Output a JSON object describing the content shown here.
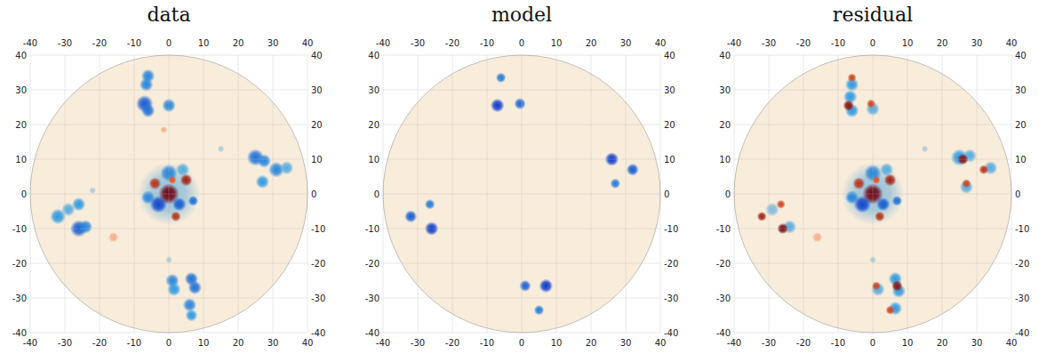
{
  "chart_data": [
    {
      "type": "image",
      "title": "data",
      "xlim": [
        -40,
        40
      ],
      "ylim": [
        -40,
        40
      ],
      "xticks": [
        -40,
        -30,
        -20,
        -10,
        0,
        10,
        20,
        30,
        40
      ],
      "yticks": [
        -40,
        -30,
        -20,
        -10,
        0,
        10,
        20,
        30,
        40
      ],
      "grid": true,
      "points": {
        "x": [
          0,
          -16,
          15,
          0,
          -1.5,
          -22,
          -6,
          -6.5,
          -7,
          -6,
          0,
          25,
          27.5,
          31,
          34,
          27,
          -26,
          -29,
          -32,
          -26,
          -24,
          1,
          1.5,
          6.5,
          7.5,
          6,
          6.5,
          0,
          -6,
          7,
          4,
          -3,
          3,
          -4,
          5,
          2,
          1,
          0
        ],
        "y": [
          0,
          -12.5,
          13,
          -19,
          18.5,
          1,
          34,
          31.5,
          26,
          24,
          25.5,
          10.5,
          9.5,
          7,
          7.5,
          3.5,
          -3,
          -4.5,
          -6.5,
          -10,
          -9.5,
          -25,
          -27.5,
          -24.5,
          -27,
          -32,
          -35,
          6,
          -1,
          -2,
          7,
          -3,
          -3,
          3,
          4,
          -6.5,
          4,
          0
        ],
        "values": [
          0.25,
          -0.2,
          0.2,
          0.2,
          -0.2,
          0.2,
          0.6,
          0.6,
          0.8,
          0.7,
          0.6,
          0.7,
          0.6,
          0.6,
          0.4,
          0.5,
          0.5,
          0.4,
          0.5,
          0.8,
          0.6,
          0.6,
          0.5,
          0.7,
          0.7,
          0.6,
          0.5,
          0.6,
          0.6,
          0.7,
          0.4,
          0.9,
          0.8,
          -0.7,
          -0.8,
          -0.7,
          -0.5,
          -1
        ],
        "sizes": [
          9,
          1.5,
          1,
          1,
          1,
          1,
          2,
          2,
          2.5,
          2,
          2,
          2.5,
          2,
          2.3,
          2,
          2,
          2,
          2,
          2.3,
          2.5,
          2,
          2,
          2,
          2,
          2,
          2,
          1.8,
          2.5,
          2,
          1.5,
          2,
          2.5,
          2,
          1.8,
          1.8,
          1.5,
          1.2,
          3
        ]
      }
    },
    {
      "type": "image",
      "title": "model",
      "xlim": [
        -40,
        40
      ],
      "ylim": [
        -40,
        40
      ],
      "xticks": [
        -40,
        -30,
        -20,
        -10,
        0,
        10,
        20,
        30,
        40
      ],
      "yticks": [
        -40,
        -30,
        -20,
        -10,
        0,
        10,
        20,
        30,
        40
      ],
      "grid": true,
      "points": {
        "x": [
          -6,
          -7,
          -0.5,
          26,
          32,
          27,
          -26.5,
          -32,
          -26,
          1,
          7,
          5
        ],
        "y": [
          33.5,
          25.5,
          26,
          10,
          7,
          3,
          -3,
          -6.5,
          -10,
          -26.5,
          -26.5,
          -33.5
        ],
        "values": [
          0.65,
          0.95,
          0.75,
          0.95,
          0.8,
          0.65,
          0.65,
          0.8,
          0.95,
          0.75,
          0.95,
          0.65
        ],
        "sizes": [
          1.5,
          2,
          1.7,
          2,
          1.8,
          1.5,
          1.5,
          1.8,
          2,
          1.7,
          2,
          1.5
        ]
      }
    },
    {
      "type": "image",
      "title": "residual",
      "xlim": [
        -40,
        40
      ],
      "ylim": [
        -40,
        40
      ],
      "xticks": [
        -40,
        -30,
        -20,
        -10,
        0,
        10,
        20,
        30,
        40
      ],
      "yticks": [
        -40,
        -30,
        -20,
        -10,
        0,
        10,
        20,
        30,
        40
      ],
      "grid": true,
      "points": {
        "x": [
          0,
          -16,
          15,
          0,
          -6,
          -6.5,
          -6,
          0,
          25,
          28,
          34,
          27,
          -29,
          -24,
          1.5,
          6.5,
          7.5,
          6.5,
          0,
          -6,
          7,
          4,
          -3,
          3,
          -4,
          5,
          2,
          1,
          -6,
          -7,
          -0.5,
          26,
          32,
          27,
          -26.5,
          -32,
          -26,
          1,
          7,
          5,
          0
        ],
        "y": [
          0,
          -12.5,
          13,
          -19,
          31.5,
          28,
          24,
          24.5,
          10.5,
          11,
          7.5,
          2,
          -4.5,
          -9.5,
          -27.5,
          -24.5,
          -28,
          -33,
          6,
          -1,
          -2,
          7,
          -3,
          -3,
          3,
          4,
          -6.5,
          4,
          33.5,
          25.5,
          26,
          10,
          7,
          3,
          -3,
          -6.5,
          -10,
          -26.5,
          -26.5,
          -33.5,
          0
        ],
        "values": [
          0.25,
          -0.2,
          0.2,
          0.2,
          0.5,
          0.5,
          0.5,
          0.4,
          0.5,
          0.4,
          0.4,
          0.4,
          0.3,
          0.4,
          0.4,
          0.5,
          0.5,
          0.5,
          0.6,
          0.6,
          0.7,
          0.4,
          0.9,
          0.8,
          -0.7,
          -0.8,
          -0.7,
          -0.5,
          -0.6,
          -0.9,
          -0.6,
          -0.9,
          -0.7,
          -0.6,
          -0.6,
          -0.8,
          -0.95,
          -0.6,
          -0.9,
          -0.6,
          -1
        ],
        "sizes": [
          9,
          1.5,
          1,
          1,
          2,
          2,
          2,
          2,
          2.5,
          2,
          2,
          2,
          2,
          2,
          2,
          2,
          2,
          2,
          2.5,
          2,
          1.5,
          2,
          2.5,
          2,
          1.8,
          1.8,
          1.5,
          1.2,
          1.3,
          1.6,
          1.3,
          1.6,
          1.4,
          1.3,
          1.3,
          1.4,
          1.6,
          1.3,
          1.6,
          1.3,
          3
        ]
      }
    }
  ]
}
